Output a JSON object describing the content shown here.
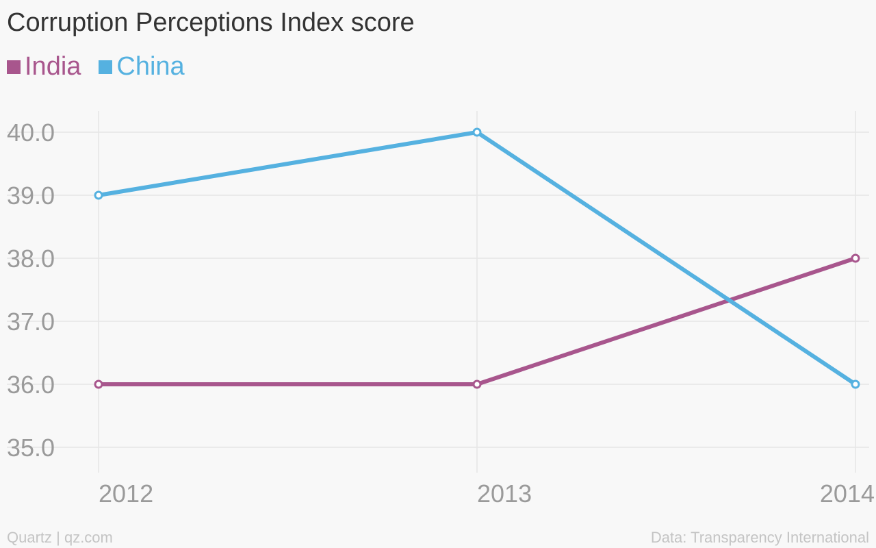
{
  "chart_data": {
    "type": "line",
    "title": "Corruption Perceptions Index score",
    "x": [
      "2012",
      "2013",
      "2014"
    ],
    "y_ticks": [
      "35.0",
      "36.0",
      "37.0",
      "38.0",
      "39.0",
      "40.0"
    ],
    "ylim": [
      35,
      40
    ],
    "grid": true,
    "legend_position": "top-left",
    "series": [
      {
        "name": "India",
        "values": [
          36,
          36,
          38
        ],
        "color": "#a8568d"
      },
      {
        "name": "China",
        "values": [
          39,
          40,
          36
        ],
        "color": "#55b1e0"
      }
    ]
  },
  "footer": {
    "source_left": "Quartz | qz.com",
    "source_right": "Data: Transparency International"
  }
}
